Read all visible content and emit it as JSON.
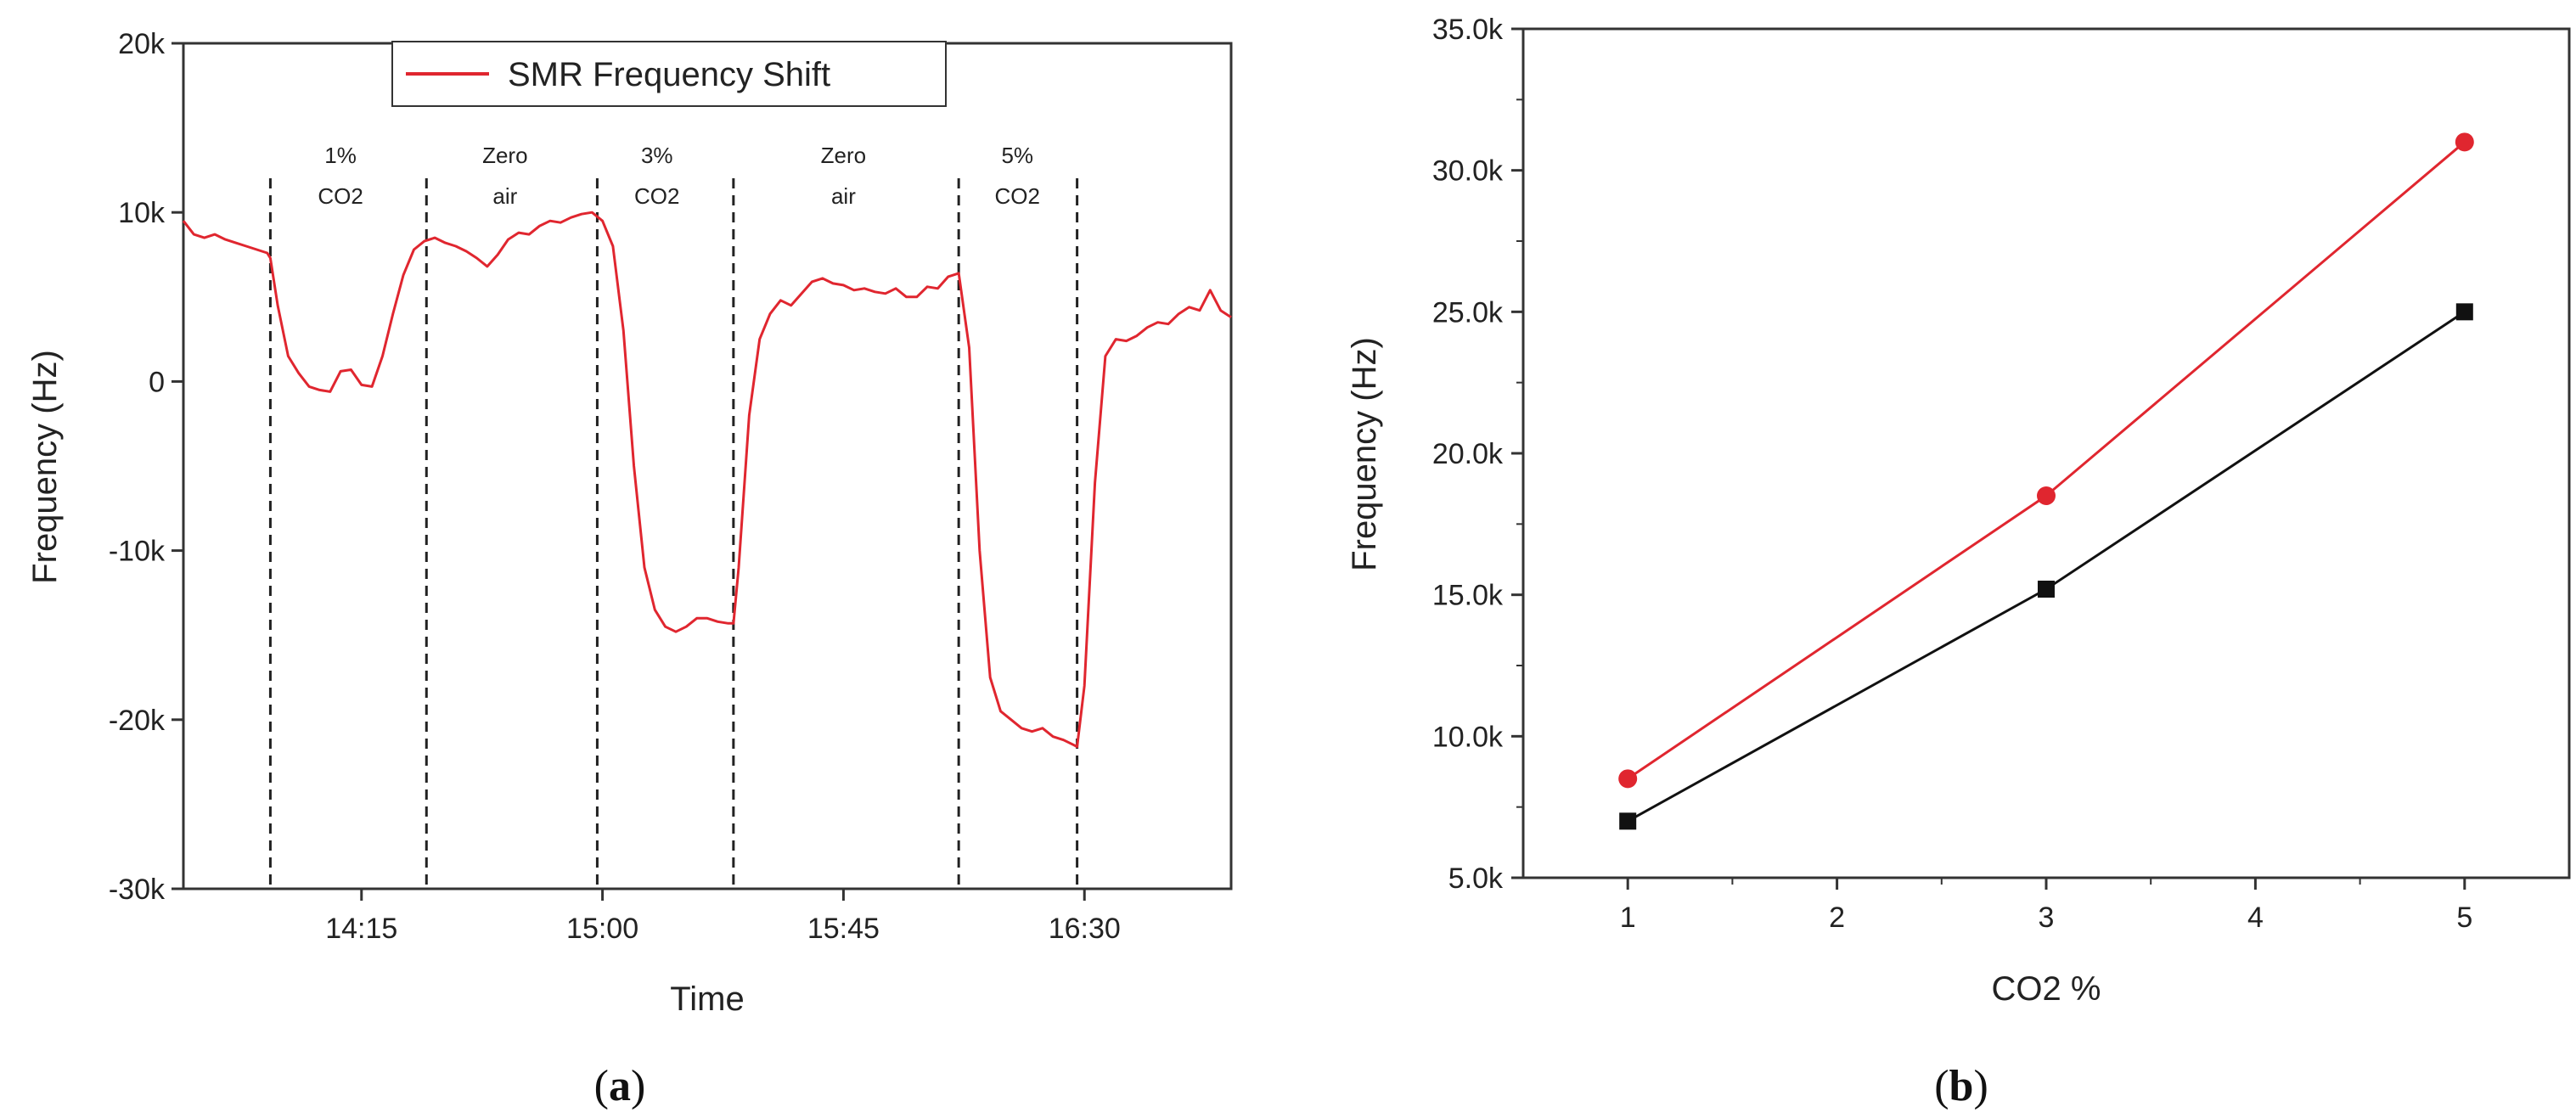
{
  "chart_data": [
    {
      "panel": "(a)",
      "type": "line",
      "caption_open": "(",
      "caption_letter": "a",
      "caption_close": ")",
      "xlabel": "Time",
      "ylabel": "Frequency (Hz)",
      "xlim": [
        0,
        100
      ],
      "ylim": [
        -30000,
        20000
      ],
      "xticks": [
        {
          "x": 17,
          "label": "14:15"
        },
        {
          "x": 40,
          "label": "15:00"
        },
        {
          "x": 63,
          "label": "15:45"
        },
        {
          "x": 86,
          "label": "16:30"
        }
      ],
      "yticks": [
        {
          "y": 20000,
          "label": "20k"
        },
        {
          "y": 10000,
          "label": "10k"
        },
        {
          "y": 0,
          "label": "0"
        },
        {
          "y": -10000,
          "label": "-10k"
        },
        {
          "y": -20000,
          "label": "-20k"
        },
        {
          "y": -30000,
          "label": "-30k"
        }
      ],
      "legend": {
        "label": "SMR Frequency Shift",
        "position": "top-left",
        "color": "#e0262f"
      },
      "vlines": [
        8.3,
        23.2,
        39.5,
        52.5,
        74.0,
        85.3
      ],
      "annotations": [
        {
          "x": 15.0,
          "lines": [
            "1%",
            "CO2"
          ]
        },
        {
          "x": 30.7,
          "lines": [
            "Zero",
            "air"
          ]
        },
        {
          "x": 45.2,
          "lines": [
            "3%",
            "CO2"
          ]
        },
        {
          "x": 63.0,
          "lines": [
            "Zero",
            "air"
          ]
        },
        {
          "x": 79.6,
          "lines": [
            "5%",
            "CO2"
          ]
        }
      ],
      "series": [
        {
          "name": "SMR Frequency Shift",
          "color": "#e0262f",
          "x": [
            0,
            1,
            2,
            3,
            4,
            5,
            6,
            7,
            8,
            8.3,
            9,
            10,
            11,
            12,
            13,
            14,
            15,
            16,
            17,
            18,
            19,
            20,
            21,
            22,
            23,
            24,
            25,
            26,
            27,
            28,
            29,
            30,
            31,
            32,
            33,
            34,
            35,
            36,
            37,
            38,
            39,
            40,
            41,
            42,
            43,
            44,
            45,
            46,
            47,
            48,
            49,
            50,
            51,
            52,
            52.5,
            53,
            54,
            55,
            56,
            57,
            58,
            59,
            60,
            61,
            62,
            63,
            64,
            65,
            66,
            67,
            68,
            69,
            70,
            71,
            72,
            73,
            74,
            75,
            76,
            77,
            78,
            79,
            80,
            81,
            82,
            83,
            84,
            85,
            85.3,
            86,
            87,
            88,
            89,
            90,
            91,
            92,
            93,
            94,
            95,
            96,
            97,
            98,
            99,
            100
          ],
          "y": [
            9500,
            8700,
            8500,
            8700,
            8400,
            8200,
            8000,
            7800,
            7600,
            7300,
            4500,
            1500,
            500,
            -300,
            -500,
            -600,
            600,
            700,
            -200,
            -300,
            1500,
            4000,
            6300,
            7800,
            8300,
            8500,
            8200,
            8000,
            7700,
            7300,
            6800,
            7500,
            8400,
            8800,
            8700,
            9200,
            9500,
            9400,
            9700,
            9900,
            10000,
            9500,
            8000,
            3000,
            -5000,
            -11000,
            -13500,
            -14500,
            -14800,
            -14500,
            -14000,
            -14000,
            -14200,
            -14300,
            -14300,
            -11000,
            -2000,
            2500,
            4000,
            4800,
            4500,
            5200,
            5900,
            6100,
            5800,
            5700,
            5400,
            5500,
            5300,
            5200,
            5500,
            5000,
            5000,
            5600,
            5500,
            6200,
            6400,
            2000,
            -10000,
            -17500,
            -19500,
            -20000,
            -20500,
            -20700,
            -20500,
            -21000,
            -21200,
            -21500,
            -21600,
            -18000,
            -6000,
            1500,
            2500,
            2400,
            2700,
            3200,
            3500,
            3400,
            4000,
            4400,
            4200,
            5400,
            4200,
            3800
          ]
        }
      ]
    },
    {
      "panel": "(b)",
      "type": "line",
      "caption_open": "(",
      "caption_letter": "b",
      "caption_close": ")",
      "xlabel": "CO2 %",
      "ylabel": "Frequency (Hz)",
      "xlim": [
        0.5,
        5.5
      ],
      "ylim": [
        5000,
        35000
      ],
      "xticks": [
        {
          "x": 1,
          "label": "1"
        },
        {
          "x": 2,
          "label": "2"
        },
        {
          "x": 3,
          "label": "3"
        },
        {
          "x": 4,
          "label": "4"
        },
        {
          "x": 5,
          "label": "5"
        }
      ],
      "yticks": [
        {
          "y": 5000,
          "label": "5.0k"
        },
        {
          "y": 10000,
          "label": "10.0k"
        },
        {
          "y": 15000,
          "label": "15.0k"
        },
        {
          "y": 20000,
          "label": "20.0k"
        },
        {
          "y": 25000,
          "label": "25.0k"
        },
        {
          "y": 30000,
          "label": "30.0k"
        },
        {
          "y": 35000,
          "label": "35.0k"
        }
      ],
      "series": [
        {
          "name": "red-circles",
          "color": "#e0262f",
          "marker": "circle",
          "x": [
            1,
            3,
            5
          ],
          "y": [
            8500,
            18500,
            31000
          ]
        },
        {
          "name": "black-squares",
          "color": "#111111",
          "marker": "square",
          "x": [
            1,
            3,
            5
          ],
          "y": [
            7000,
            15200,
            25000
          ]
        }
      ]
    }
  ]
}
